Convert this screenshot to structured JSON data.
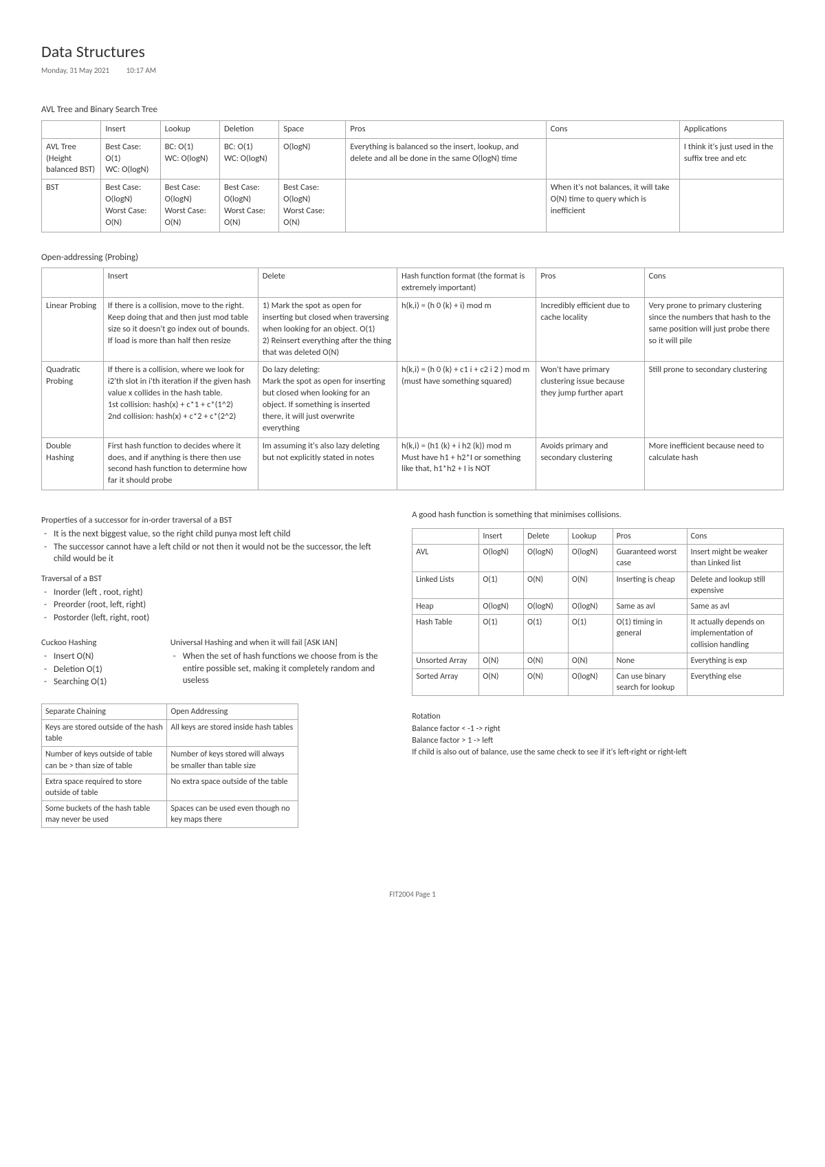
{
  "title": "Data Structures",
  "date": "Monday, 31 May 2021",
  "time": "10:17 AM",
  "section1": {
    "heading": "AVL Tree and Binary Search Tree",
    "headers": [
      "",
      "Insert",
      "Lookup",
      "Deletion",
      "Space",
      "Pros",
      "Cons",
      "Applications"
    ],
    "widths": [
      "8%",
      "8%",
      "8%",
      "8%",
      "9%",
      "27%",
      "18%",
      "14%"
    ],
    "rows": [
      {
        "label": "AVL Tree (Height balanced BST)",
        "cells": [
          "Best Case: O(1)\nWC: O(logN)",
          "BC: O(1)\nWC: O(logN)",
          "BC: O(1)\nWC: O(logN)",
          "O(logN)",
          "Everything is balanced so the insert, lookup, and delete and all be done in the same O(logN) time",
          "",
          "I think it's just used in the suffix tree and etc"
        ]
      },
      {
        "label": "BST",
        "cells": [
          "Best Case: O(logN)\nWorst Case: O(N)",
          "Best Case: O(logN)\nWorst Case: O(N)",
          "Best Case: O(logN)\nWorst Case: O(N)",
          "Best Case: O(logN)\nWorst Case: O(N)",
          "",
          "When it's not balances, it will take O(N) time to query which is inefficient",
          ""
        ]
      }
    ]
  },
  "section2": {
    "heading": "Open-addressing (Probing)",
    "headers": [
      "",
      "Insert",
      "Delete",
      "Hash function format (the format is extremely important)",
      "Pros",
      "Cons"
    ],
    "widths": [
      "8%",
      "20%",
      "18%",
      "18%",
      "14%",
      "18%"
    ],
    "rows": [
      {
        "label": "Linear Probing",
        "cells": [
          "If there is a collision, move to the right. Keep doing that and then just mod table size so it doesn't go index out of bounds.  If load is more than half then resize",
          "1) Mark the spot as open for inserting but closed when traversing when looking for an object. O(1)\n2) Reinsert everything after the thing that was deleted O(N)",
          "h(k,i) = (h 0 (k) + i) mod m",
          "Incredibly efficient due to cache locality",
          "Very prone to primary clustering since the numbers that hash to the same position will just probe there so it will pile"
        ]
      },
      {
        "label": "Quadratic Probing",
        "cells": [
          "If there is a collision, where we look for i2'th slot in i'th iteration if the given hash value x collides in the hash table.\n1st collision: hash(x) + c*1 + c*(1^2)\n2nd collision: hash(x) + c*2 + c*(2^2)",
          "Do lazy deleting:\nMark the spot as open for inserting but closed when looking for an object. If something is inserted there, it will just overwrite everything",
          "h(k,i) = (h 0 (k) + c1 i + c2 i 2 ) mod m\n(must have something squared)",
          "Won't have primary clustering issue because they jump further apart",
          "Still prone to secondary clustering"
        ]
      },
      {
        "label": "Double Hashing",
        "cells": [
          "First hash function to decides where it does, and if anything is there then use second hash function to determine how far it should probe",
          "Im assuming it's also lazy deleting but not explicitly stated in notes",
          "h(k,i) = (h1 (k) + i h2 (k)) mod m\nMust have h1 +  h2*I or something like that, h1*h2 + I is NOT",
          "Avoids primary and secondary clustering",
          "More inefficient because need to calculate hash"
        ]
      }
    ]
  },
  "leftCol": {
    "successor_title": "Properties of a successor for in-order traversal of a BST",
    "successor_items": [
      "It is the next biggest value, so the right child punya most left child",
      "The successor cannot have a left child or not then it would not be the successor, the left child would be it"
    ],
    "traversal_title": "Traversal of a BST",
    "traversal_items": [
      "Inorder (left , root, right)",
      "Preorder (root, left, right)",
      "Postorder (left, right, root)"
    ],
    "cuckoo_title": "Cuckoo Hashing",
    "cuckoo_items": [
      "Insert O(N)",
      "Deletion O(1)",
      "Searching O(1)"
    ],
    "universal_title": "Universal Hashing and when it will fail [ASK IAN]",
    "universal_items": [
      "When the set of hash functions we choose from is the entire possible set, making it completely random and useless"
    ],
    "chain_table": {
      "headers": [
        "Separate Chaining",
        "Open Addressing"
      ],
      "rows": [
        [
          "Keys are stored outside of the hash table",
          "All keys are stored inside hash tables"
        ],
        [
          "Number of keys outside of table can be > than size of table",
          "Number of keys stored will always be smaller than table size"
        ],
        [
          "Extra space required to store outside of table",
          "No extra space outside of the table"
        ],
        [
          "Some buckets of the hash table may never be used",
          "Spaces can be used even though no key maps there"
        ]
      ]
    }
  },
  "rightCol": {
    "hash_note": "A good hash function is something that minimises collisions.",
    "summary_table": {
      "headers": [
        "",
        "Insert",
        "Delete",
        "Lookup",
        "Pros",
        "Cons"
      ],
      "widths": [
        "18%",
        "12%",
        "12%",
        "12%",
        "20%",
        "26%"
      ],
      "rows": [
        [
          "AVL",
          "O(logN)",
          "O(logN)",
          "O(logN)",
          "Guaranteed worst case",
          "Insert might be weaker than Linked list"
        ],
        [
          "Linked Lists",
          "O(1)",
          "O(N)",
          "O(N)",
          "Inserting is cheap",
          "Delete and lookup still expensive"
        ],
        [
          "Heap",
          "O(logN)",
          "O(logN)",
          "O(logN)",
          "Same as avl",
          "Same as avl"
        ],
        [
          "Hash Table",
          "O(1)",
          "O(1)",
          "O(1)",
          "O(1) timing in general",
          "It actually depends on implementation of collision handling"
        ],
        [
          "Unsorted Array",
          "O(N)",
          "O(N)",
          "O(N)",
          "None",
          "Everything is exp"
        ],
        [
          "Sorted Array",
          "O(N)",
          "O(N)",
          "O(logN)",
          "Can use binary search for lookup",
          "Everything else"
        ]
      ]
    },
    "rotation_title": "Rotation",
    "rotation_lines": [
      "Balance factor < -1 -> right",
      "Balance factor > 1 -> left",
      "If child is also out of balance, use the same check to see if it's left-right or right-left"
    ]
  },
  "footer": "FIT2004 Page 1"
}
